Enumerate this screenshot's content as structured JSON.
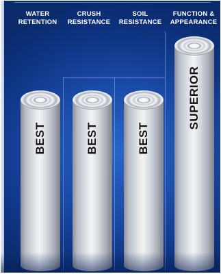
{
  "headers": [
    {
      "line1": "WATER",
      "line2": "RETENTION"
    },
    {
      "line1": "CRUSH",
      "line2": "RESISTANCE"
    },
    {
      "line1": "SOIL",
      "line2": "RESISTANCE"
    },
    {
      "line1": "FUNCTION &",
      "line2": "APPEARANCE"
    }
  ],
  "columns": [
    {
      "rating": "BEST"
    },
    {
      "rating": "BEST"
    },
    {
      "rating": "BEST"
    },
    {
      "rating": "SUPERIOR"
    }
  ],
  "colors": {
    "background": "#1a4aa6",
    "header_text": "#ffffff",
    "column_metal": "#d6dae0",
    "rating_text": "#141414"
  }
}
